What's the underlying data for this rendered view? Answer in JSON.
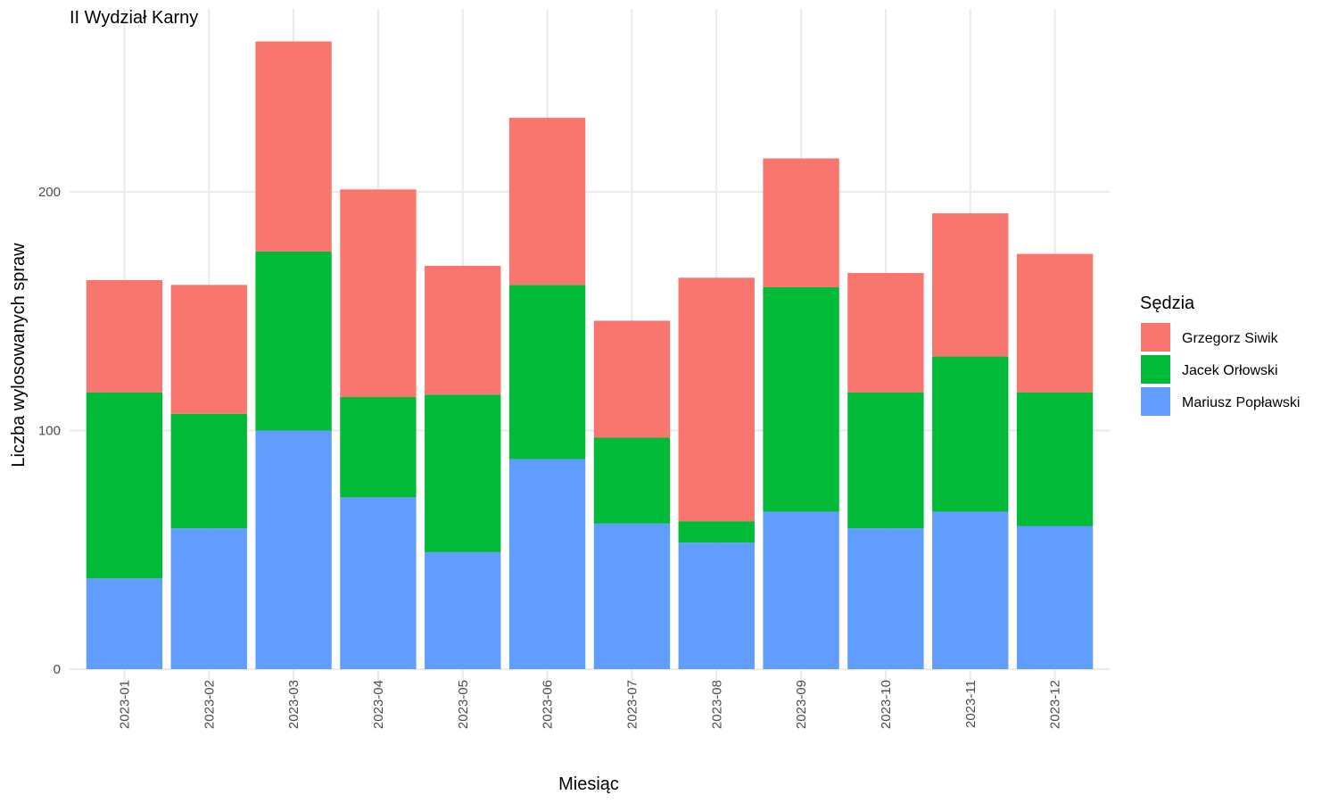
{
  "chart_data": {
    "type": "bar",
    "stacked": true,
    "title": "II Wydział Karny",
    "xlabel": "Miesiąc",
    "ylabel": "Liczba wylosowanych spraw",
    "categories": [
      "2023-01",
      "2023-02",
      "2023-03",
      "2023-04",
      "2023-05",
      "2023-06",
      "2023-07",
      "2023-08",
      "2023-09",
      "2023-10",
      "2023-11",
      "2023-12"
    ],
    "series": [
      {
        "name": "Mariusz Popławski",
        "color": "#619CFF",
        "values": [
          38,
          59,
          100,
          72,
          49,
          88,
          61,
          53,
          66,
          59,
          66,
          60
        ]
      },
      {
        "name": "Jacek Orłowski",
        "color": "#00BA38",
        "values": [
          78,
          48,
          75,
          42,
          66,
          73,
          36,
          9,
          94,
          57,
          65,
          56
        ]
      },
      {
        "name": "Grzegorz Siwik",
        "color": "#F8766D",
        "values": [
          47,
          54,
          88,
          87,
          54,
          70,
          49,
          102,
          54,
          50,
          60,
          58
        ]
      }
    ],
    "yticks": [
      0,
      100,
      200
    ],
    "ylim": [
      0,
      270
    ],
    "grid": true,
    "legend": {
      "title": "Sędzia",
      "position": "right",
      "order": [
        "Grzegorz Siwik",
        "Jacek Orłowski",
        "Mariusz Popławski"
      ]
    }
  }
}
